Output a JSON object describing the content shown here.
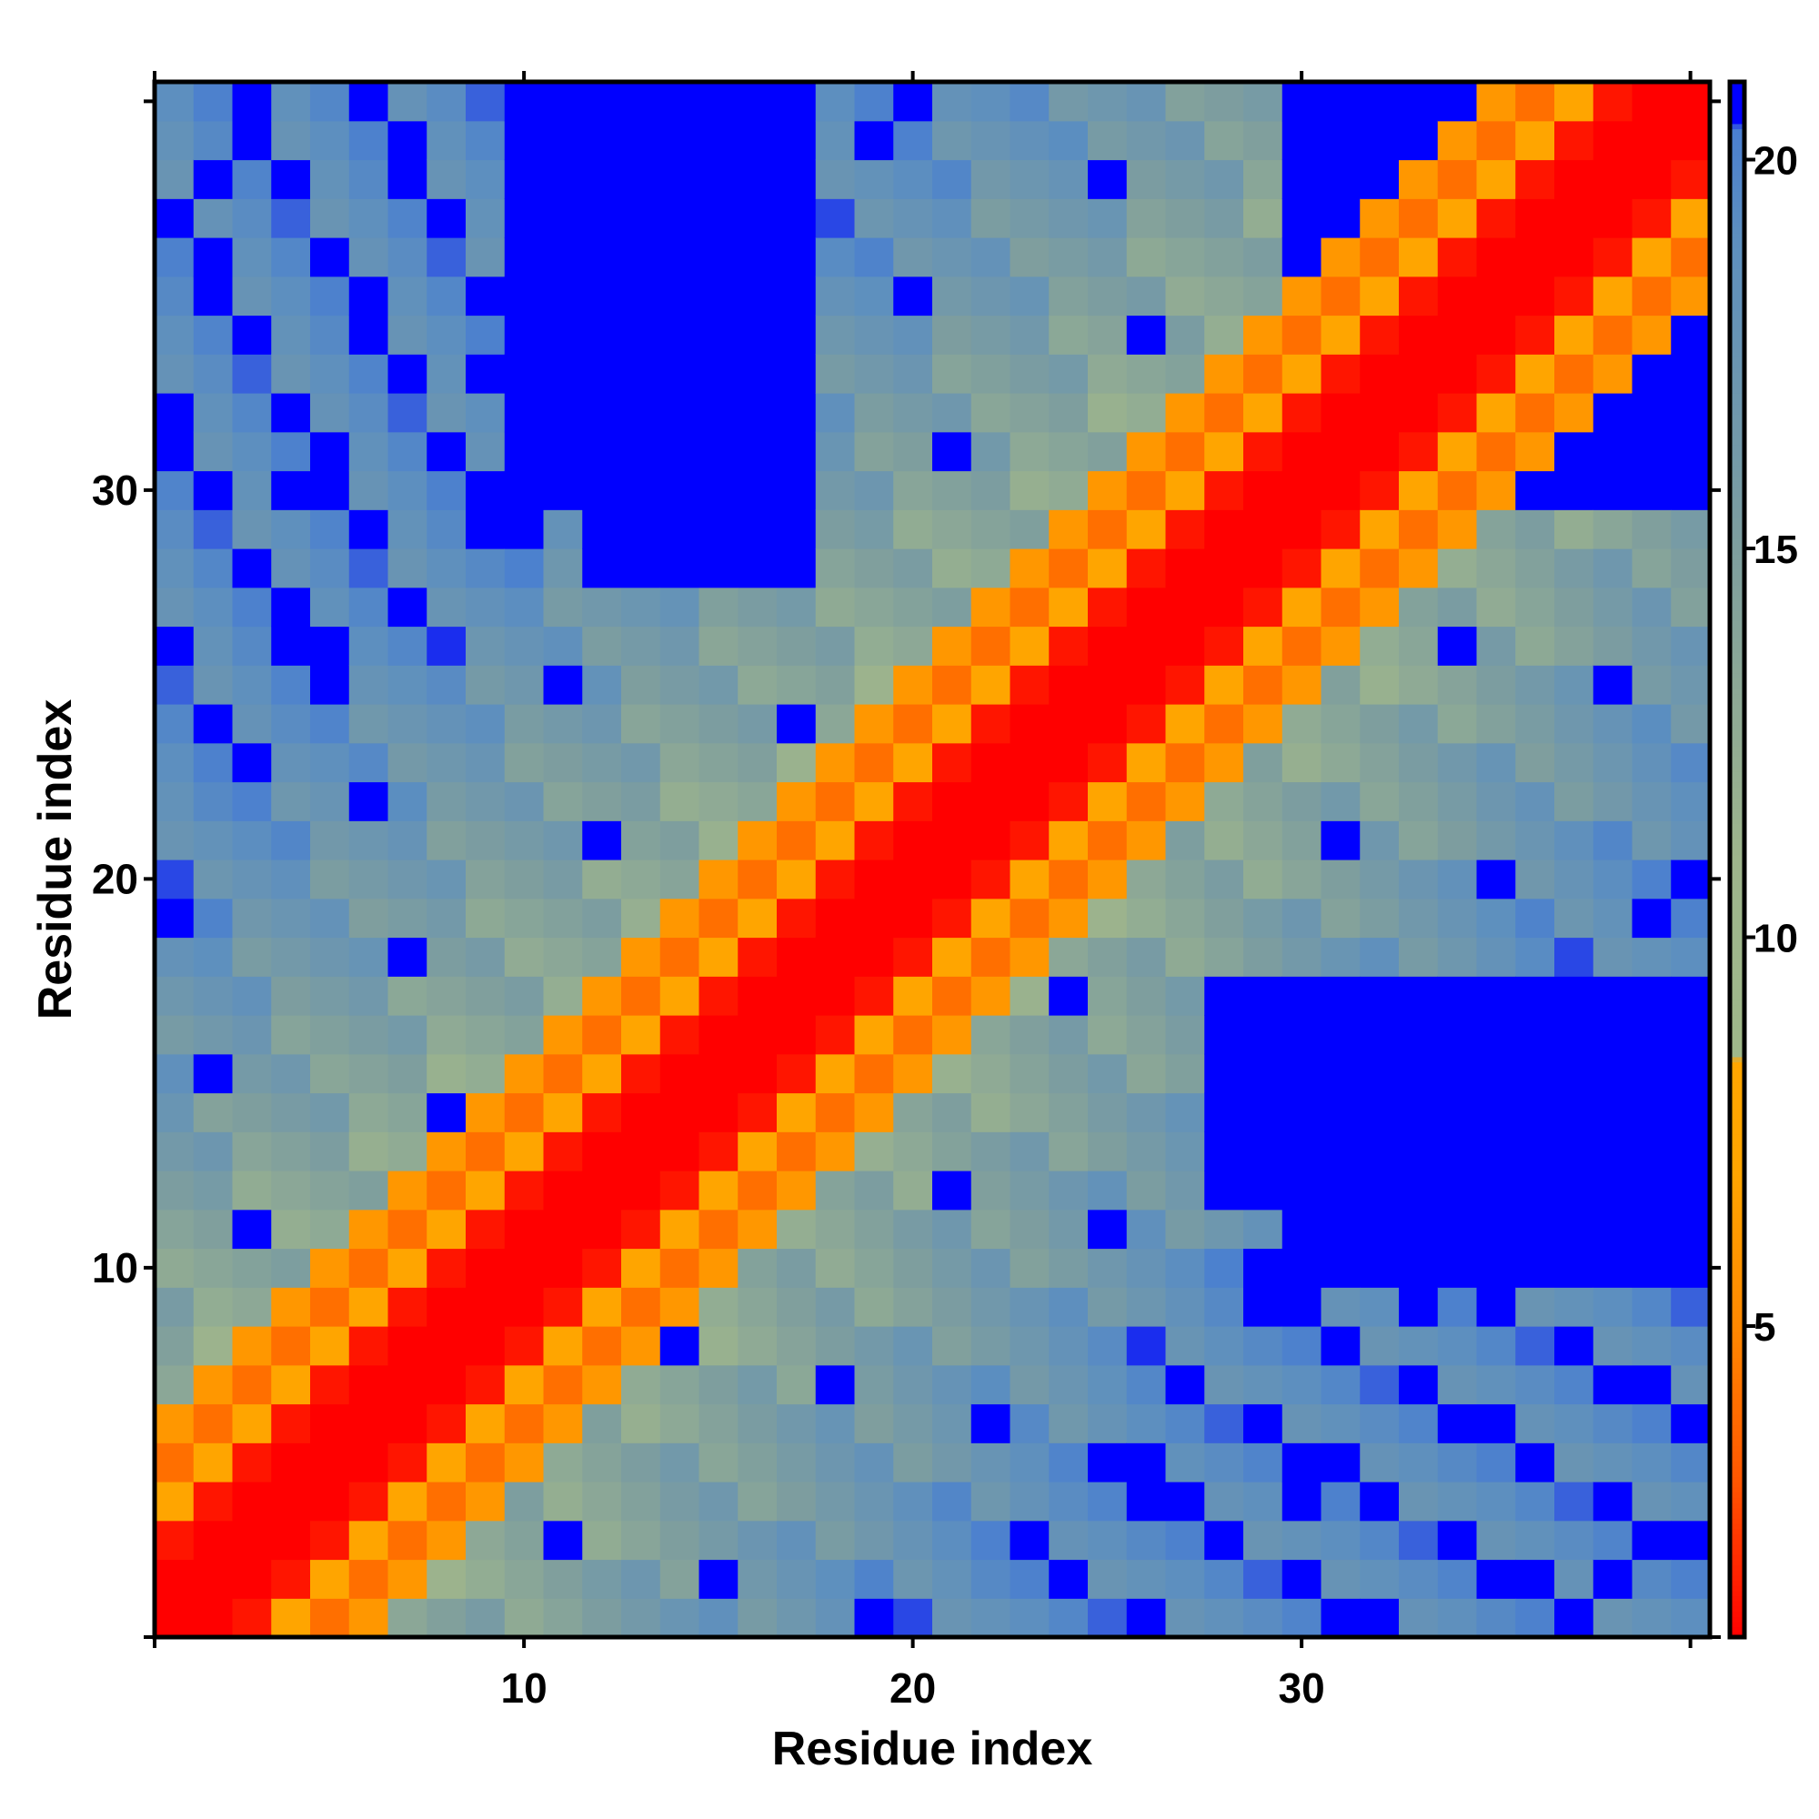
{
  "chart_data": {
    "type": "heatmap",
    "title": "",
    "xlabel": "Residue index",
    "ylabel": "Residue index",
    "n_residues": 40,
    "xlim": [
      0.5,
      40.5
    ],
    "ylim": [
      0.5,
      40.5
    ],
    "x_ticks": [
      10,
      20,
      30
    ],
    "y_ticks": [
      10,
      20,
      30
    ],
    "colorbar": {
      "range": [
        1,
        21
      ],
      "ticks": [
        5,
        10,
        15,
        20
      ],
      "stops": [
        {
          "value": 1,
          "color": "#ff0000"
        },
        {
          "value": 3,
          "color": "#ff5500"
        },
        {
          "value": 5,
          "color": "#ff8800"
        },
        {
          "value": 7,
          "color": "#ffa500"
        },
        {
          "value": 8.4,
          "color": "#ffa500"
        },
        {
          "value": 8.5,
          "color": "#9fb88a"
        },
        {
          "value": 11,
          "color": "#9eb58c"
        },
        {
          "value": 15,
          "color": "#7e9e9e"
        },
        {
          "value": 19,
          "color": "#5d8fbf"
        },
        {
          "value": 20.4,
          "color": "#4a7fd0"
        },
        {
          "value": 20.5,
          "color": "#0000ff"
        },
        {
          "value": 21,
          "color": "#0000ff"
        }
      ]
    },
    "description": "Symmetric residue-residue distance matrix; values grow with sequence separation |i-j| and saturate near 21. Blocks of large distance near (13-17, 28-40) and (30-40, 10-17).",
    "matrix_rule": {
      "diagonal_band": [
        {
          "separation": 0,
          "value": 1.0
        },
        {
          "separation": 1,
          "value": 1.0
        },
        {
          "separation": 2,
          "value": 1.5
        },
        {
          "separation": 3,
          "value": 7.0
        },
        {
          "separation": 4,
          "value": 4.0
        },
        {
          "separation": 5,
          "value": 6.0
        }
      ],
      "far_value": 21,
      "far_blocks": [
        {
          "i": [
            12,
            17
          ],
          "j": [
            28,
            40
          ]
        },
        {
          "i": [
            30,
            40
          ],
          "j": [
            10,
            17
          ]
        },
        {
          "i": [
            36,
            40
          ],
          "j": [
            30,
            40
          ]
        }
      ]
    }
  }
}
